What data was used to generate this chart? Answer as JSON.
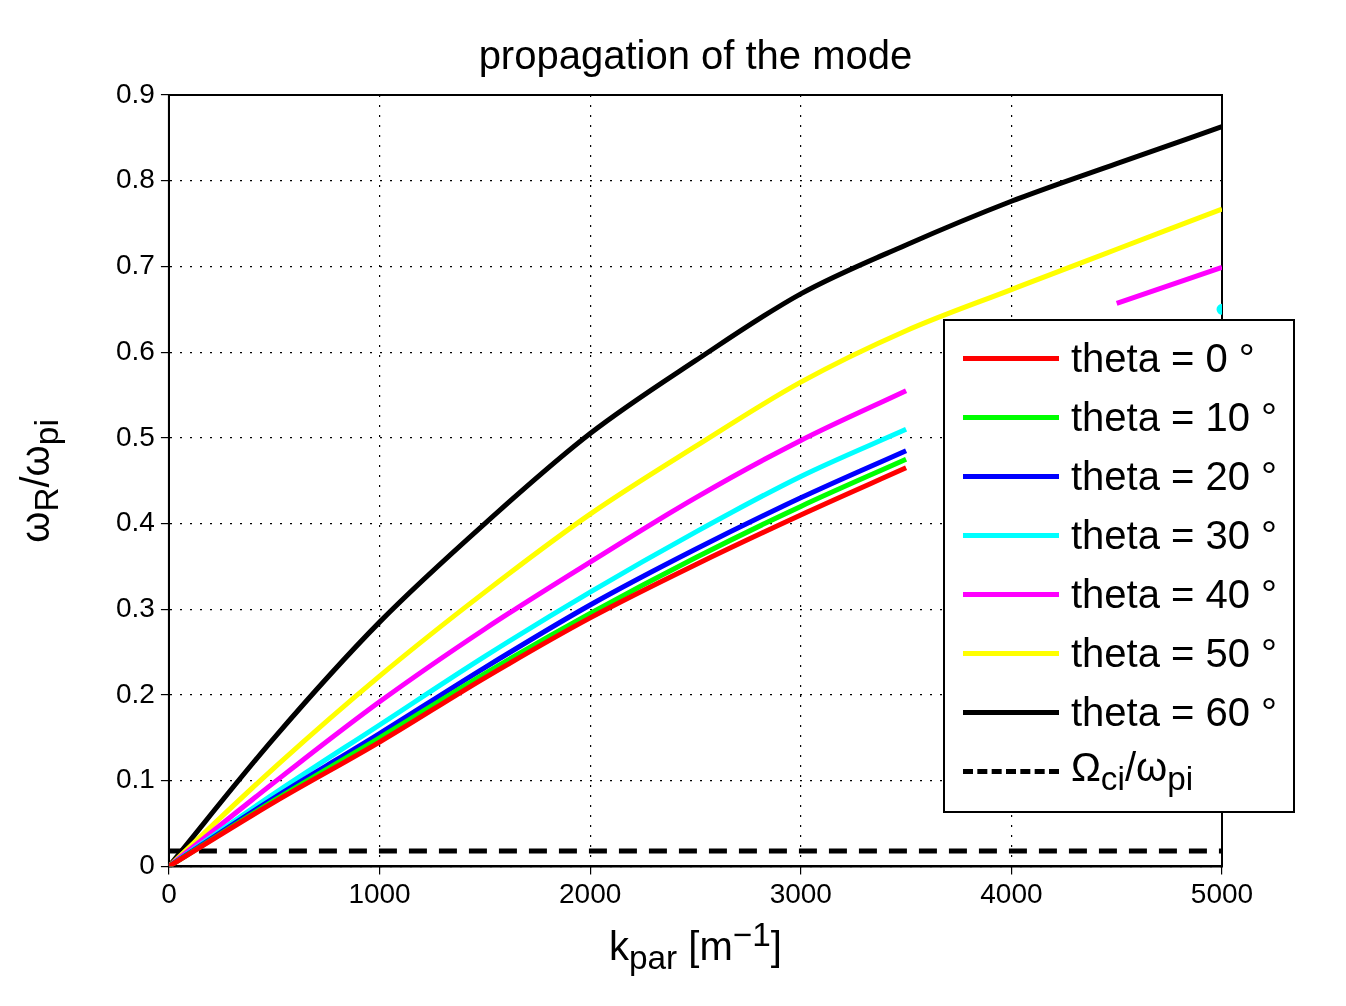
{
  "chart_data": {
    "type": "line",
    "title": "propagation of the mode",
    "xlabel": "k$_{par}$ [m$^{−1}$]",
    "ylabel": "ω$_{R}$/ω$_{pi}$",
    "x": [
      0,
      500,
      1000,
      1500,
      2000,
      2500,
      3000,
      3500,
      4000,
      4500,
      5000
    ],
    "xlim": [
      0,
      5000
    ],
    "xticks": [
      0,
      1000,
      2000,
      3000,
      4000,
      5000
    ],
    "ylim": [
      0,
      0.9
    ],
    "yticks": [
      0,
      0.1,
      0.2,
      0.3,
      0.4,
      0.5,
      0.6,
      0.7,
      0.8,
      0.9
    ],
    "grid": true,
    "legend": "right",
    "marker": "none",
    "line_style": "solid",
    "series": [
      {
        "name": "theta = 0 °",
        "color": "#ff0000",
        "values": [
          0,
          0.075,
          0.145,
          0.22,
          0.29,
          0.352,
          0.41,
          0.465,
          null,
          null,
          null
        ]
      },
      {
        "name": "theta = 10 °",
        "color": "#00ff00",
        "values": [
          0,
          0.077,
          0.15,
          0.225,
          0.295,
          0.36,
          0.42,
          0.475,
          null,
          null,
          null
        ]
      },
      {
        "name": "theta = 20 °",
        "color": "#0000ff",
        "values": [
          0,
          0.08,
          0.155,
          0.232,
          0.305,
          0.37,
          0.43,
          0.485,
          null,
          null,
          null
        ]
      },
      {
        "name": "theta = 30 °",
        "color": "#00ffff",
        "values": [
          0,
          0.085,
          0.165,
          0.245,
          0.32,
          0.39,
          0.455,
          0.51,
          null,
          null,
          0.65
        ]
      },
      {
        "name": "theta = 40 °",
        "color": "#ff00ff",
        "values": [
          0,
          0.098,
          0.192,
          0.277,
          0.355,
          0.43,
          0.497,
          0.555,
          null,
          0.657,
          0.699
        ]
      },
      {
        "name": "theta = 50 °",
        "color": "#ffff00",
        "values": [
          0,
          0.115,
          0.222,
          0.32,
          0.411,
          0.49,
          0.565,
          0.625,
          0.673,
          0.72,
          0.767
        ]
      },
      {
        "name": "theta = 60 °",
        "color": "#000000",
        "values": [
          0,
          0.15,
          0.285,
          0.4,
          0.505,
          0.59,
          0.668,
          0.725,
          0.776,
          0.82,
          0.863
        ]
      },
      {
        "name": "Ω$_{ci}$/ω$_{pi}$",
        "color": "#000000",
        "type": "line",
        "line_style": "dashed",
        "x": [
          0,
          5000
        ],
        "values": [
          0.018,
          0.018
        ]
      }
    ]
  }
}
